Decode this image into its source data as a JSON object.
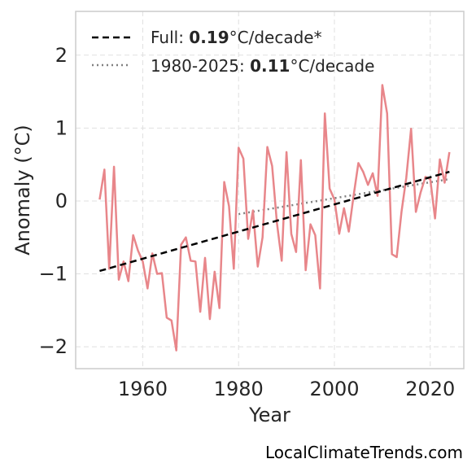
{
  "chart_data": {
    "type": "line",
    "xlabel": "Year",
    "ylabel": "Anomaly (°C)",
    "xlim": [
      1946,
      2027
    ],
    "ylim": [
      -2.3,
      2.6
    ],
    "xticks": [
      1960,
      1980,
      2000,
      2020
    ],
    "yticks": [
      -2,
      -1,
      0,
      1,
      2
    ],
    "ytick_labels": [
      "−2",
      "−1",
      "0",
      "1",
      "2"
    ],
    "grid": true,
    "legend_position": "top-left",
    "colors": {
      "series": "#e8868a",
      "full_trend": "#000000",
      "recent_trend": "#808080",
      "grid": "#e0e0e0",
      "frame": "#cccccc"
    },
    "series": [
      {
        "x": [
          1951,
          1952,
          1953,
          1954,
          1955,
          1956,
          1957,
          1958,
          1959,
          1960,
          1961,
          1962,
          1963,
          1964,
          1965,
          1966,
          1967,
          1968,
          1969,
          1970,
          1971,
          1972,
          1973,
          1974,
          1975,
          1976,
          1977,
          1978,
          1979,
          1980,
          1981,
          1982,
          1983,
          1984,
          1985,
          1986,
          1987,
          1988,
          1989,
          1990,
          1991,
          1992,
          1993,
          1994,
          1995,
          1996,
          1997,
          1998,
          1999,
          2000,
          2001,
          2002,
          2003,
          2004,
          2005,
          2006,
          2007,
          2008,
          2009,
          2010,
          2011,
          2012,
          2013,
          2014,
          2015,
          2016,
          2017,
          2018,
          2019,
          2020,
          2021,
          2022,
          2023,
          2024
        ],
        "values": [
          0.02,
          0.43,
          -0.93,
          0.47,
          -1.08,
          -0.83,
          -1.1,
          -0.47,
          -0.68,
          -0.83,
          -1.2,
          -0.72,
          -1.0,
          -0.99,
          -1.6,
          -1.64,
          -2.05,
          -0.6,
          -0.5,
          -0.82,
          -0.83,
          -1.52,
          -0.78,
          -1.62,
          -0.97,
          -1.47,
          0.26,
          -0.07,
          -0.93,
          0.73,
          0.58,
          -0.52,
          -0.13,
          -0.9,
          -0.5,
          0.74,
          0.48,
          -0.3,
          -0.82,
          0.67,
          -0.45,
          -0.7,
          0.56,
          -0.95,
          -0.32,
          -0.47,
          -1.2,
          1.2,
          0.17,
          0.02,
          -0.45,
          -0.1,
          -0.42,
          0.07,
          0.52,
          0.4,
          0.22,
          0.38,
          0.07,
          1.59,
          1.2,
          -0.73,
          -0.77,
          -0.15,
          0.32,
          0.99,
          -0.15,
          0.12,
          0.33,
          0.3,
          -0.24,
          0.57,
          0.25,
          0.67
        ]
      }
    ],
    "trend_lines": [
      {
        "style": "dashed",
        "x": [
          1951,
          2024
        ],
        "y": [
          -0.96,
          0.4
        ]
      },
      {
        "style": "dotted",
        "x": [
          1980,
          2024
        ],
        "y": [
          -0.18,
          0.3
        ]
      }
    ],
    "legend": [
      {
        "prefix": "Full: ",
        "value": "0.19",
        "suffix": "°C/decade*"
      },
      {
        "prefix": "1980-2025: ",
        "value": "0.11",
        "suffix": "°C/decade"
      }
    ]
  },
  "source_label": "LocalClimateTrends.com"
}
